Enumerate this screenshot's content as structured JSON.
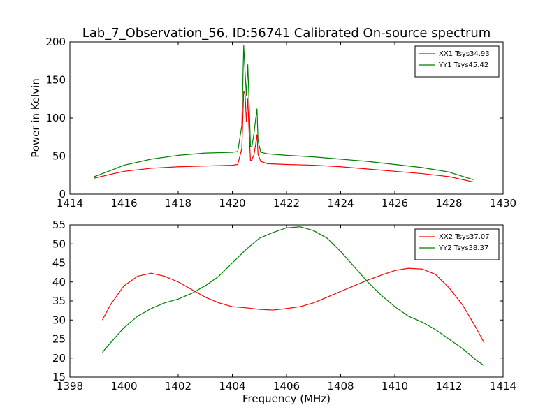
{
  "chart_data": [
    {
      "type": "line",
      "title": "Lab_7_Observation_56, ID:56741 Calibrated On-source spectrum",
      "xlabel": "",
      "ylabel": "Power in Kelvin",
      "xlim": [
        1414,
        1430
      ],
      "ylim": [
        0,
        200
      ],
      "xticks": [
        1414,
        1416,
        1418,
        1420,
        1422,
        1424,
        1426,
        1428,
        1430
      ],
      "yticks": [
        0,
        50,
        100,
        150,
        200
      ],
      "grid": false,
      "legend_position": "top-right",
      "series": [
        {
          "name": "XX1 Tsys34.93",
          "color": "#ff0000",
          "x": [
            1414.9,
            1415.5,
            1416,
            1417,
            1418,
            1419,
            1420,
            1420.2,
            1420.35,
            1420.42,
            1420.47,
            1420.52,
            1420.57,
            1420.62,
            1420.67,
            1420.72,
            1420.8,
            1420.86,
            1420.91,
            1420.95,
            1421.05,
            1421.3,
            1422,
            1423,
            1424,
            1425,
            1426,
            1427,
            1428,
            1428.9
          ],
          "y": [
            21,
            26,
            30,
            34,
            36,
            37,
            38,
            39,
            60,
            135,
            132,
            95,
            125,
            80,
            44,
            45,
            52,
            65,
            78,
            52,
            43,
            40,
            39,
            38,
            36,
            33,
            30,
            27,
            23,
            16
          ]
        },
        {
          "name": "YY1 Tsys45.42",
          "color": "#008000",
          "x": [
            1414.9,
            1415.5,
            1416,
            1417,
            1418,
            1419,
            1420,
            1420.2,
            1420.35,
            1420.42,
            1420.47,
            1420.52,
            1420.57,
            1420.62,
            1420.67,
            1420.72,
            1420.8,
            1420.86,
            1420.91,
            1420.95,
            1421.05,
            1421.3,
            1422,
            1423,
            1424,
            1425,
            1426,
            1427,
            1428,
            1428.9
          ],
          "y": [
            23,
            31,
            38,
            46,
            51,
            54,
            55,
            56,
            90,
            195,
            160,
            130,
            170,
            120,
            63,
            62,
            80,
            98,
            112,
            70,
            55,
            53,
            51,
            49,
            46,
            43,
            39,
            35,
            29,
            19
          ]
        }
      ]
    },
    {
      "type": "line",
      "title": "",
      "xlabel": "Frequency (MHz)",
      "ylabel": "",
      "xlim": [
        1398,
        1414
      ],
      "ylim": [
        15,
        55
      ],
      "xticks": [
        1398,
        1400,
        1402,
        1404,
        1406,
        1408,
        1410,
        1412,
        1414
      ],
      "yticks": [
        15,
        20,
        25,
        30,
        35,
        40,
        45,
        50,
        55
      ],
      "grid": false,
      "legend_position": "top-right",
      "series": [
        {
          "name": "XX2 Tsys37.07",
          "color": "#ff0000",
          "x": [
            1399.2,
            1399.5,
            1400,
            1400.5,
            1401,
            1401.5,
            1402,
            1402.5,
            1403,
            1403.5,
            1404,
            1404.5,
            1405,
            1405.5,
            1406,
            1406.5,
            1407,
            1407.5,
            1408,
            1408.5,
            1409,
            1409.5,
            1410,
            1410.5,
            1411,
            1411.5,
            1412,
            1412.5,
            1413,
            1413.3
          ],
          "y": [
            30,
            34,
            39,
            41.5,
            42.3,
            41.5,
            40,
            38,
            36,
            34.5,
            33.5,
            33.2,
            32.8,
            32.6,
            33,
            33.5,
            34.5,
            36,
            37.5,
            39,
            40.5,
            41.8,
            43,
            43.6,
            43.4,
            42,
            38.5,
            34,
            28,
            24
          ]
        },
        {
          "name": "YY2 Tsys38.37",
          "color": "#008000",
          "x": [
            1399.2,
            1399.5,
            1400,
            1400.5,
            1401,
            1401.5,
            1402,
            1402.5,
            1403,
            1403.5,
            1404,
            1404.5,
            1405,
            1405.5,
            1406,
            1406.5,
            1407,
            1407.5,
            1408,
            1408.5,
            1409,
            1409.5,
            1410,
            1410.5,
            1411,
            1411.5,
            1412,
            1412.5,
            1413,
            1413.3
          ],
          "y": [
            21.5,
            24,
            28,
            31,
            33,
            34.5,
            35.5,
            37,
            39,
            41.5,
            45,
            48.5,
            51.5,
            53,
            54.2,
            54.5,
            53.5,
            51.5,
            48,
            44,
            40,
            36.5,
            33.5,
            31,
            29.5,
            27.5,
            25,
            22.5,
            19.5,
            18
          ]
        }
      ]
    }
  ]
}
